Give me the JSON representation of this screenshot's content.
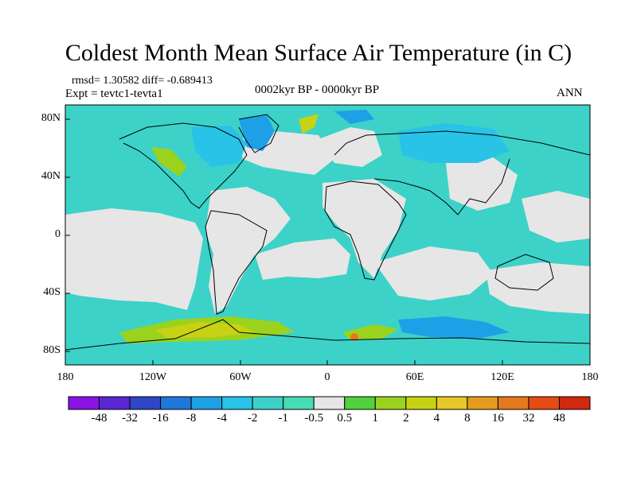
{
  "title": "Coldest Month Mean Surface Air Temperature (in C)",
  "stats": "rmsd= 1.30582 diff= -0.689413",
  "experiment": "Expt = tevtc1-tevta1",
  "period": "0002kyr BP - 0000kyr BP",
  "season": "ANN",
  "lat_labels": [
    "80N",
    "40N",
    "0",
    "40S",
    "80S"
  ],
  "lon_labels": [
    "180",
    "120W",
    "60W",
    "0",
    "60E",
    "120E",
    "180"
  ],
  "colorbar": {
    "labels": [
      "-48",
      "-32",
      "-16",
      "-8",
      "-4",
      "-2",
      "-1",
      "-0.5",
      "0.5",
      "1",
      "2",
      "4",
      "8",
      "16",
      "32",
      "48"
    ],
    "colors": [
      "#8a14e6",
      "#5a28d2",
      "#2e46c8",
      "#1e78dc",
      "#1ea0e6",
      "#28c3e6",
      "#3cd2c8",
      "#46dcb4",
      "#e6e6e6",
      "#50d23c",
      "#9bd21e",
      "#c8d214",
      "#e6c828",
      "#e69b1e",
      "#e6781e",
      "#e64b14",
      "#d2280f"
    ]
  },
  "colors": {
    "neutral": "#e6e6e6",
    "ocean_teal": "#3cd2c8",
    "cool_blue": "#28c3e6",
    "warm_yellow": "#c8d214"
  }
}
